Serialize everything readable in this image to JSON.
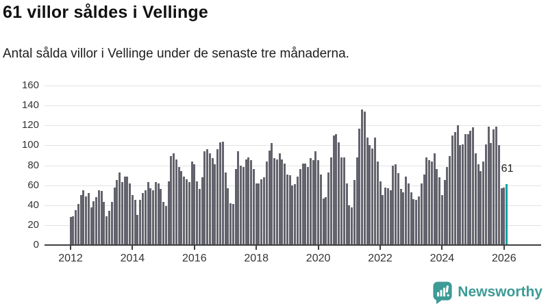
{
  "header": {
    "title": "61 villor såldes i Vellinge",
    "subtitle": "Antal sålda villor i Vellinge under de senaste tre månaderna."
  },
  "chart_data": {
    "type": "bar",
    "title": "61 villor såldes i Vellinge",
    "subtitle": "Antal sålda villor i Vellinge under de senaste tre månaderna.",
    "x_start": "2012-01",
    "x_end": "2026-02",
    "x_unit": "month",
    "xticks": [
      2012,
      2014,
      2016,
      2018,
      2020,
      2022,
      2024,
      2026
    ],
    "yticks": [
      0,
      20,
      40,
      60,
      80,
      100,
      120,
      140,
      160
    ],
    "ylim": [
      0,
      160
    ],
    "grid": true,
    "bar_color": "#63636d",
    "highlight_color": "#00a5a5",
    "highlight_index": 169,
    "highlight_label": "61",
    "values": [
      28,
      29,
      35,
      41,
      50,
      55,
      49,
      52,
      38,
      44,
      48,
      55,
      54,
      43,
      29,
      34,
      43,
      58,
      65,
      73,
      63,
      69,
      69,
      62,
      50,
      45,
      30,
      45,
      52,
      55,
      63,
      57,
      55,
      63,
      62,
      56,
      43,
      39,
      64,
      89,
      92,
      86,
      78,
      74,
      69,
      66,
      63,
      84,
      81,
      64,
      56,
      68,
      94,
      96,
      92,
      87,
      81,
      96,
      103,
      104,
      73,
      57,
      42,
      41,
      76,
      94,
      80,
      78,
      86,
      88,
      85,
      76,
      62,
      62,
      66,
      68,
      84,
      95,
      102,
      87,
      86,
      92,
      86,
      82,
      71,
      70,
      60,
      61,
      69,
      76,
      82,
      82,
      78,
      87,
      85,
      94,
      85,
      71,
      47,
      48,
      73,
      88,
      110,
      111,
      103,
      88,
      88,
      62,
      40,
      38,
      65,
      88,
      117,
      136,
      134,
      108,
      100,
      97,
      108,
      84,
      64,
      50,
      58,
      57,
      55,
      80,
      81,
      72,
      56,
      53,
      69,
      62,
      53,
      46,
      45,
      49,
      62,
      71,
      88,
      85,
      84,
      92,
      76,
      68,
      50,
      65,
      78,
      89,
      110,
      113,
      120,
      100,
      101,
      111,
      111,
      115,
      118,
      92,
      81,
      74,
      84,
      101,
      119,
      102,
      116,
      119,
      100,
      57,
      58,
      61
    ]
  },
  "footer": {
    "brand": "Newsworthy",
    "brand_color": "#3d9b96",
    "logo_icon": "bar-chart-speech-bubble-icon"
  }
}
